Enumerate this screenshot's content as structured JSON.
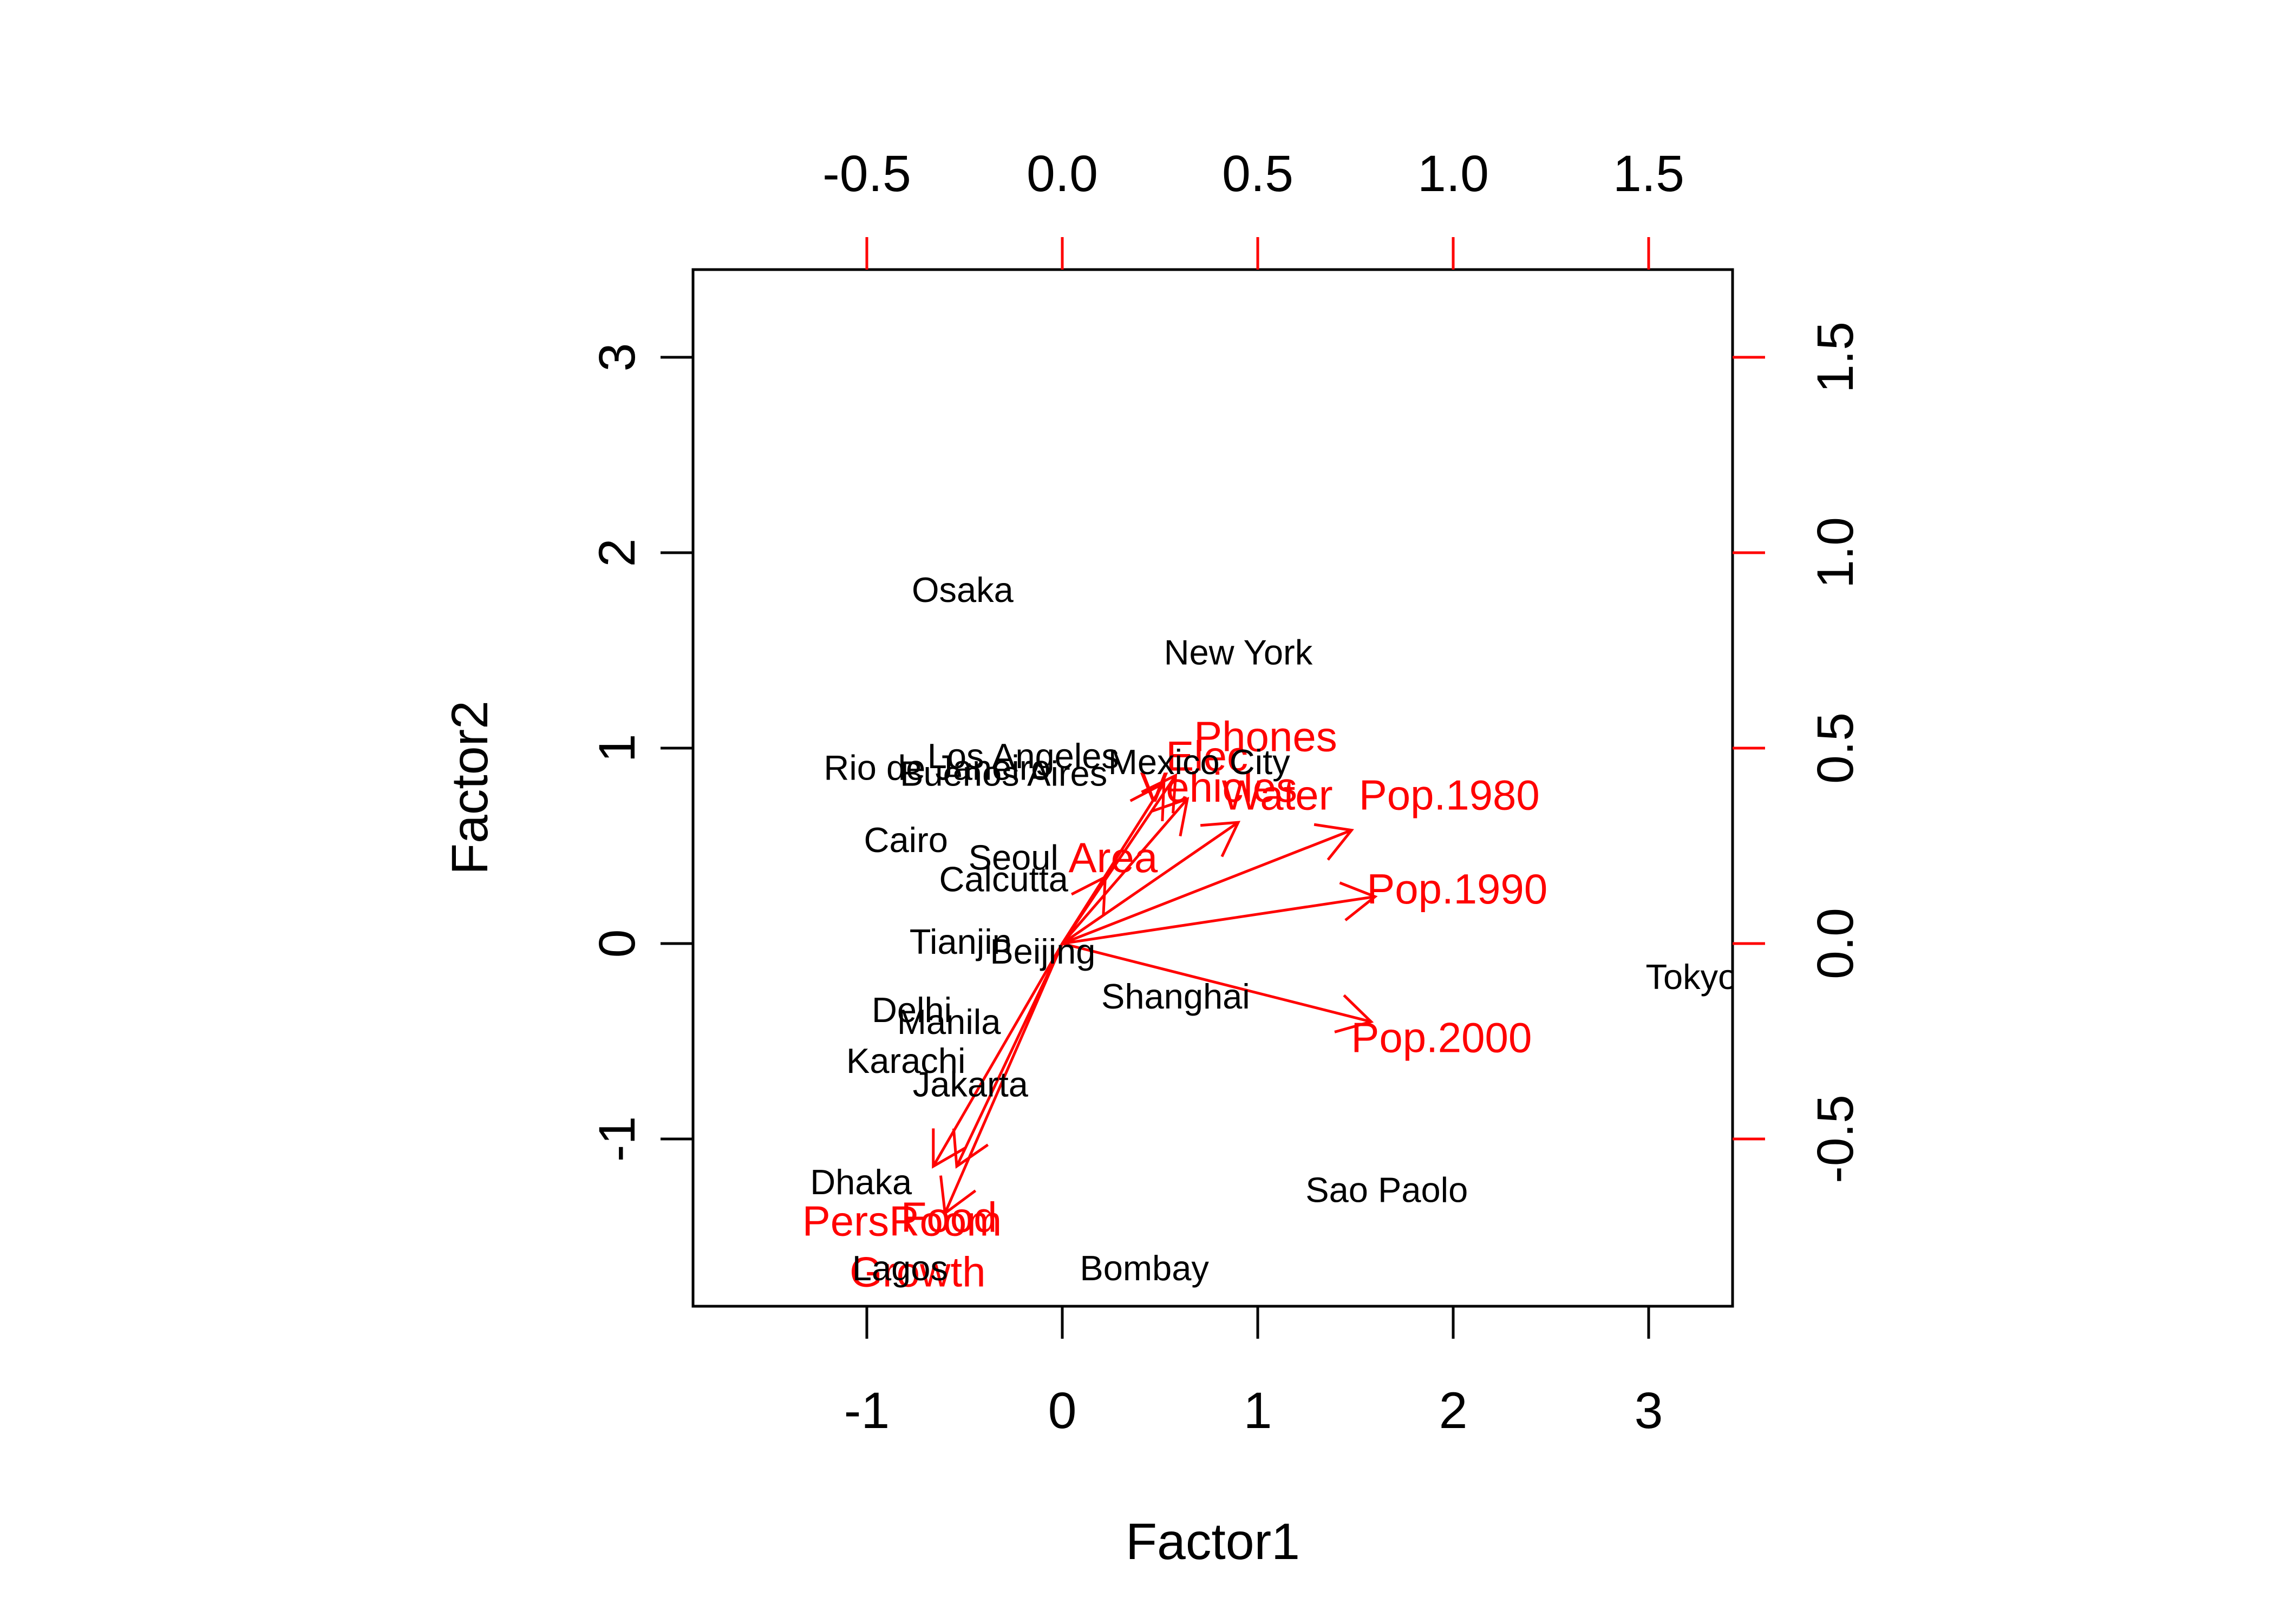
{
  "chart_data": {
    "type": "biplot",
    "xlabel": "Factor1",
    "ylabel": "Factor2",
    "bottom_axis": {
      "ticks": [
        -1,
        0,
        1,
        2,
        3
      ],
      "labels": [
        "-1",
        "0",
        "1",
        "2",
        "3"
      ]
    },
    "left_axis": {
      "ticks": [
        -1,
        0,
        1,
        2,
        3
      ],
      "labels": [
        "-1",
        "0",
        "1",
        "2",
        "3"
      ]
    },
    "top_axis": {
      "ticks": [
        -0.5,
        0,
        0.5,
        1,
        1.5
      ],
      "labels": [
        "-0.5",
        "0.0",
        "0.5",
        "1.0",
        "1.5"
      ]
    },
    "right_axis": {
      "ticks": [
        -0.5,
        0,
        0.5,
        1,
        1.5
      ],
      "labels": [
        "-0.5",
        "0.0",
        "0.5",
        "1.0",
        "1.5"
      ]
    },
    "xlim": [
      -1.85,
      3.45
    ],
    "ylim": [
      -1.85,
      3.45
    ],
    "loading_scale": 2.0,
    "points_color": "#000000",
    "loadings_color": "#ff0000",
    "points": [
      {
        "label": "Osaka",
        "x": -0.51,
        "y": 1.81
      },
      {
        "label": "New York",
        "x": 0.9,
        "y": 1.49
      },
      {
        "label": "Los Angeles",
        "x": -0.2,
        "y": 0.96
      },
      {
        "label": "Mexico City",
        "x": 0.7,
        "y": 0.93
      },
      {
        "label": "Rio de Janeiro",
        "x": -0.64,
        "y": 0.9
      },
      {
        "label": "Buenos Aires",
        "x": -0.3,
        "y": 0.87
      },
      {
        "label": "Cairo",
        "x": -0.8,
        "y": 0.53
      },
      {
        "label": "Seoul",
        "x": -0.25,
        "y": 0.44
      },
      {
        "label": "Calcutta",
        "x": -0.3,
        "y": 0.33
      },
      {
        "label": "Tianjin",
        "x": -0.52,
        "y": 0.01
      },
      {
        "label": "Beijing",
        "x": -0.1,
        "y": -0.04
      },
      {
        "label": "Shanghai",
        "x": 0.58,
        "y": -0.27
      },
      {
        "label": "Tokyo",
        "x": 3.22,
        "y": -0.17
      },
      {
        "label": "Delhi",
        "x": -0.77,
        "y": -0.34
      },
      {
        "label": "Manila",
        "x": -0.58,
        "y": -0.4
      },
      {
        "label": "Karachi",
        "x": -0.8,
        "y": -0.6
      },
      {
        "label": "Jakarta",
        "x": -0.47,
        "y": -0.72
      },
      {
        "label": "Dhaka",
        "x": -1.03,
        "y": -1.22
      },
      {
        "label": "Sao Paolo",
        "x": 1.66,
        "y": -1.26
      },
      {
        "label": "Lagos",
        "x": -0.83,
        "y": -1.66
      },
      {
        "label": "Bombay",
        "x": 0.42,
        "y": -1.66
      }
    ],
    "loadings": [
      {
        "label": "Phones",
        "x": 0.29,
        "y": 0.43,
        "label_x": 0.52,
        "label_y": 0.53
      },
      {
        "label": "Elec",
        "x": 0.26,
        "y": 0.41,
        "label_x": 0.37,
        "label_y": 0.48
      },
      {
        "label": "Vehicles",
        "x": 0.32,
        "y": 0.37,
        "label_x": 0.4,
        "label_y": 0.4
      },
      {
        "label": "Water",
        "x": 0.45,
        "y": 0.31,
        "label_x": 0.55,
        "label_y": 0.38
      },
      {
        "label": "Pop.1980",
        "x": 0.74,
        "y": 0.29,
        "label_x": 0.99,
        "label_y": 0.38
      },
      {
        "label": "Pop.1990",
        "x": 0.8,
        "y": 0.12,
        "label_x": 1.01,
        "label_y": 0.14
      },
      {
        "label": "Pop.2000",
        "x": 0.79,
        "y": -0.2,
        "label_x": 0.97,
        "label_y": -0.24
      },
      {
        "label": "Area",
        "x": 0.11,
        "y": 0.17,
        "label_x": 0.13,
        "label_y": 0.22
      },
      {
        "label": "PersRoom",
        "x": -0.27,
        "y": -0.57,
        "label_x": -0.41,
        "label_y": -0.71
      },
      {
        "label": "Food",
        "x": -0.3,
        "y": -0.69,
        "label_x": -0.29,
        "label_y": -0.7
      },
      {
        "label": "Growth",
        "x": -0.33,
        "y": -0.57,
        "label_x": -0.37,
        "label_y": -0.84
      }
    ]
  }
}
